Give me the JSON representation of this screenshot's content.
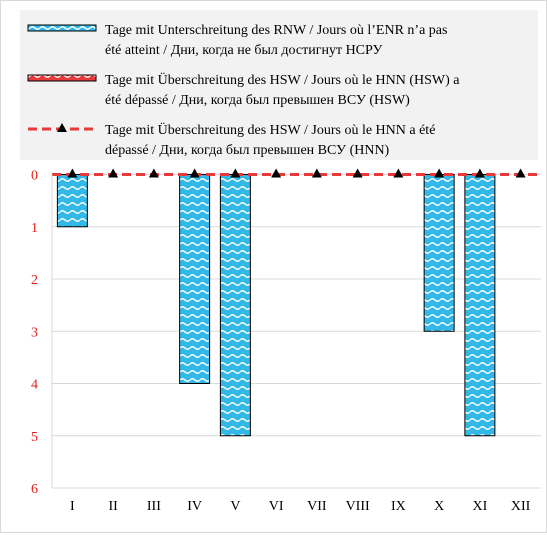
{
  "chart_data": {
    "type": "bar",
    "categories": [
      "I",
      "II",
      "III",
      "IV",
      "V",
      "VI",
      "VII",
      "VIII",
      "IX",
      "X",
      "XI",
      "XII"
    ],
    "y_ticks": [
      "0",
      "1",
      "2",
      "3",
      "4",
      "5",
      "6"
    ],
    "ylim": [
      0,
      6
    ],
    "y_inverted": true,
    "grid": true,
    "legend_position": "top",
    "series": [
      {
        "name": "Tage mit Unterschreitung des RNW / Jours où l’ENR n’a pas été atteint / Дни, когда не был достигнут НСРУ",
        "kind": "bar",
        "values": [
          1,
          0,
          0,
          4,
          5,
          0,
          0,
          0,
          0,
          3,
          5,
          0
        ],
        "color": "#33b8e8"
      },
      {
        "name": "Tage mit Überschreitung des HSW / Jours où le HNN (HSW) a été dépassé / Дни, когда был превышен ВСУ (HSW)",
        "kind": "bar",
        "values": [
          0,
          0,
          0,
          0,
          0,
          0,
          0,
          0,
          0,
          0,
          0,
          0
        ],
        "color": "#e83a3a"
      },
      {
        "name": "Tage mit Überschreitung des HSW / Jours où le HNN a été dépassé / Дни, когда был превышен ВСУ (HNN)",
        "kind": "line",
        "values": [
          0,
          0,
          0,
          0,
          0,
          0,
          0,
          0,
          0,
          0,
          0,
          0
        ],
        "color": "#e83a3a"
      }
    ],
    "tick_color": "#e02020"
  }
}
